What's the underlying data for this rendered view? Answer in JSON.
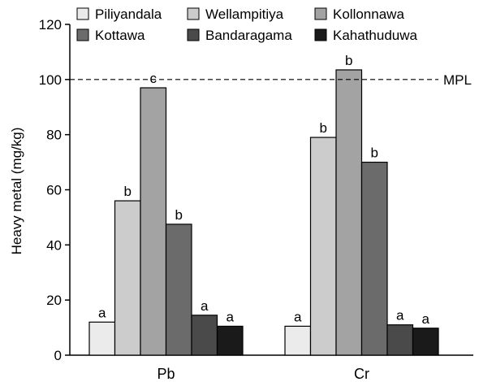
{
  "chart_data": {
    "type": "bar",
    "ylabel": "Heavy metal (mg/kg)",
    "xlabel": "",
    "ylim": [
      0,
      120
    ],
    "yticks": [
      0,
      20,
      40,
      60,
      80,
      100,
      120
    ],
    "grid": false,
    "legend_position": "top",
    "categories": [
      "Pb",
      "Cr"
    ],
    "series": [
      {
        "name": "Piliyandala",
        "color": "#ebebeb",
        "values": [
          12,
          10.5
        ],
        "labels": [
          "a",
          "a"
        ]
      },
      {
        "name": "Wellampitiya",
        "color": "#cccccc",
        "values": [
          56,
          79
        ],
        "labels": [
          "b",
          "b"
        ]
      },
      {
        "name": "Kollonnawa",
        "color": "#a3a3a3",
        "values": [
          97,
          103.5
        ],
        "labels": [
          "c",
          "b"
        ]
      },
      {
        "name": "Kottawa",
        "color": "#6b6b6b",
        "values": [
          47.5,
          70
        ],
        "labels": [
          "b",
          "b"
        ]
      },
      {
        "name": "Bandaragama",
        "color": "#4a4a4a",
        "values": [
          14.5,
          11
        ],
        "labels": [
          "a",
          "a"
        ]
      },
      {
        "name": "Kahathuduwa",
        "color": "#1a1a1a",
        "values": [
          10.5,
          9.8
        ],
        "labels": [
          "a",
          "a"
        ]
      }
    ],
    "reference_line": {
      "value": 100,
      "label": "MPL",
      "style": "dashed"
    }
  }
}
